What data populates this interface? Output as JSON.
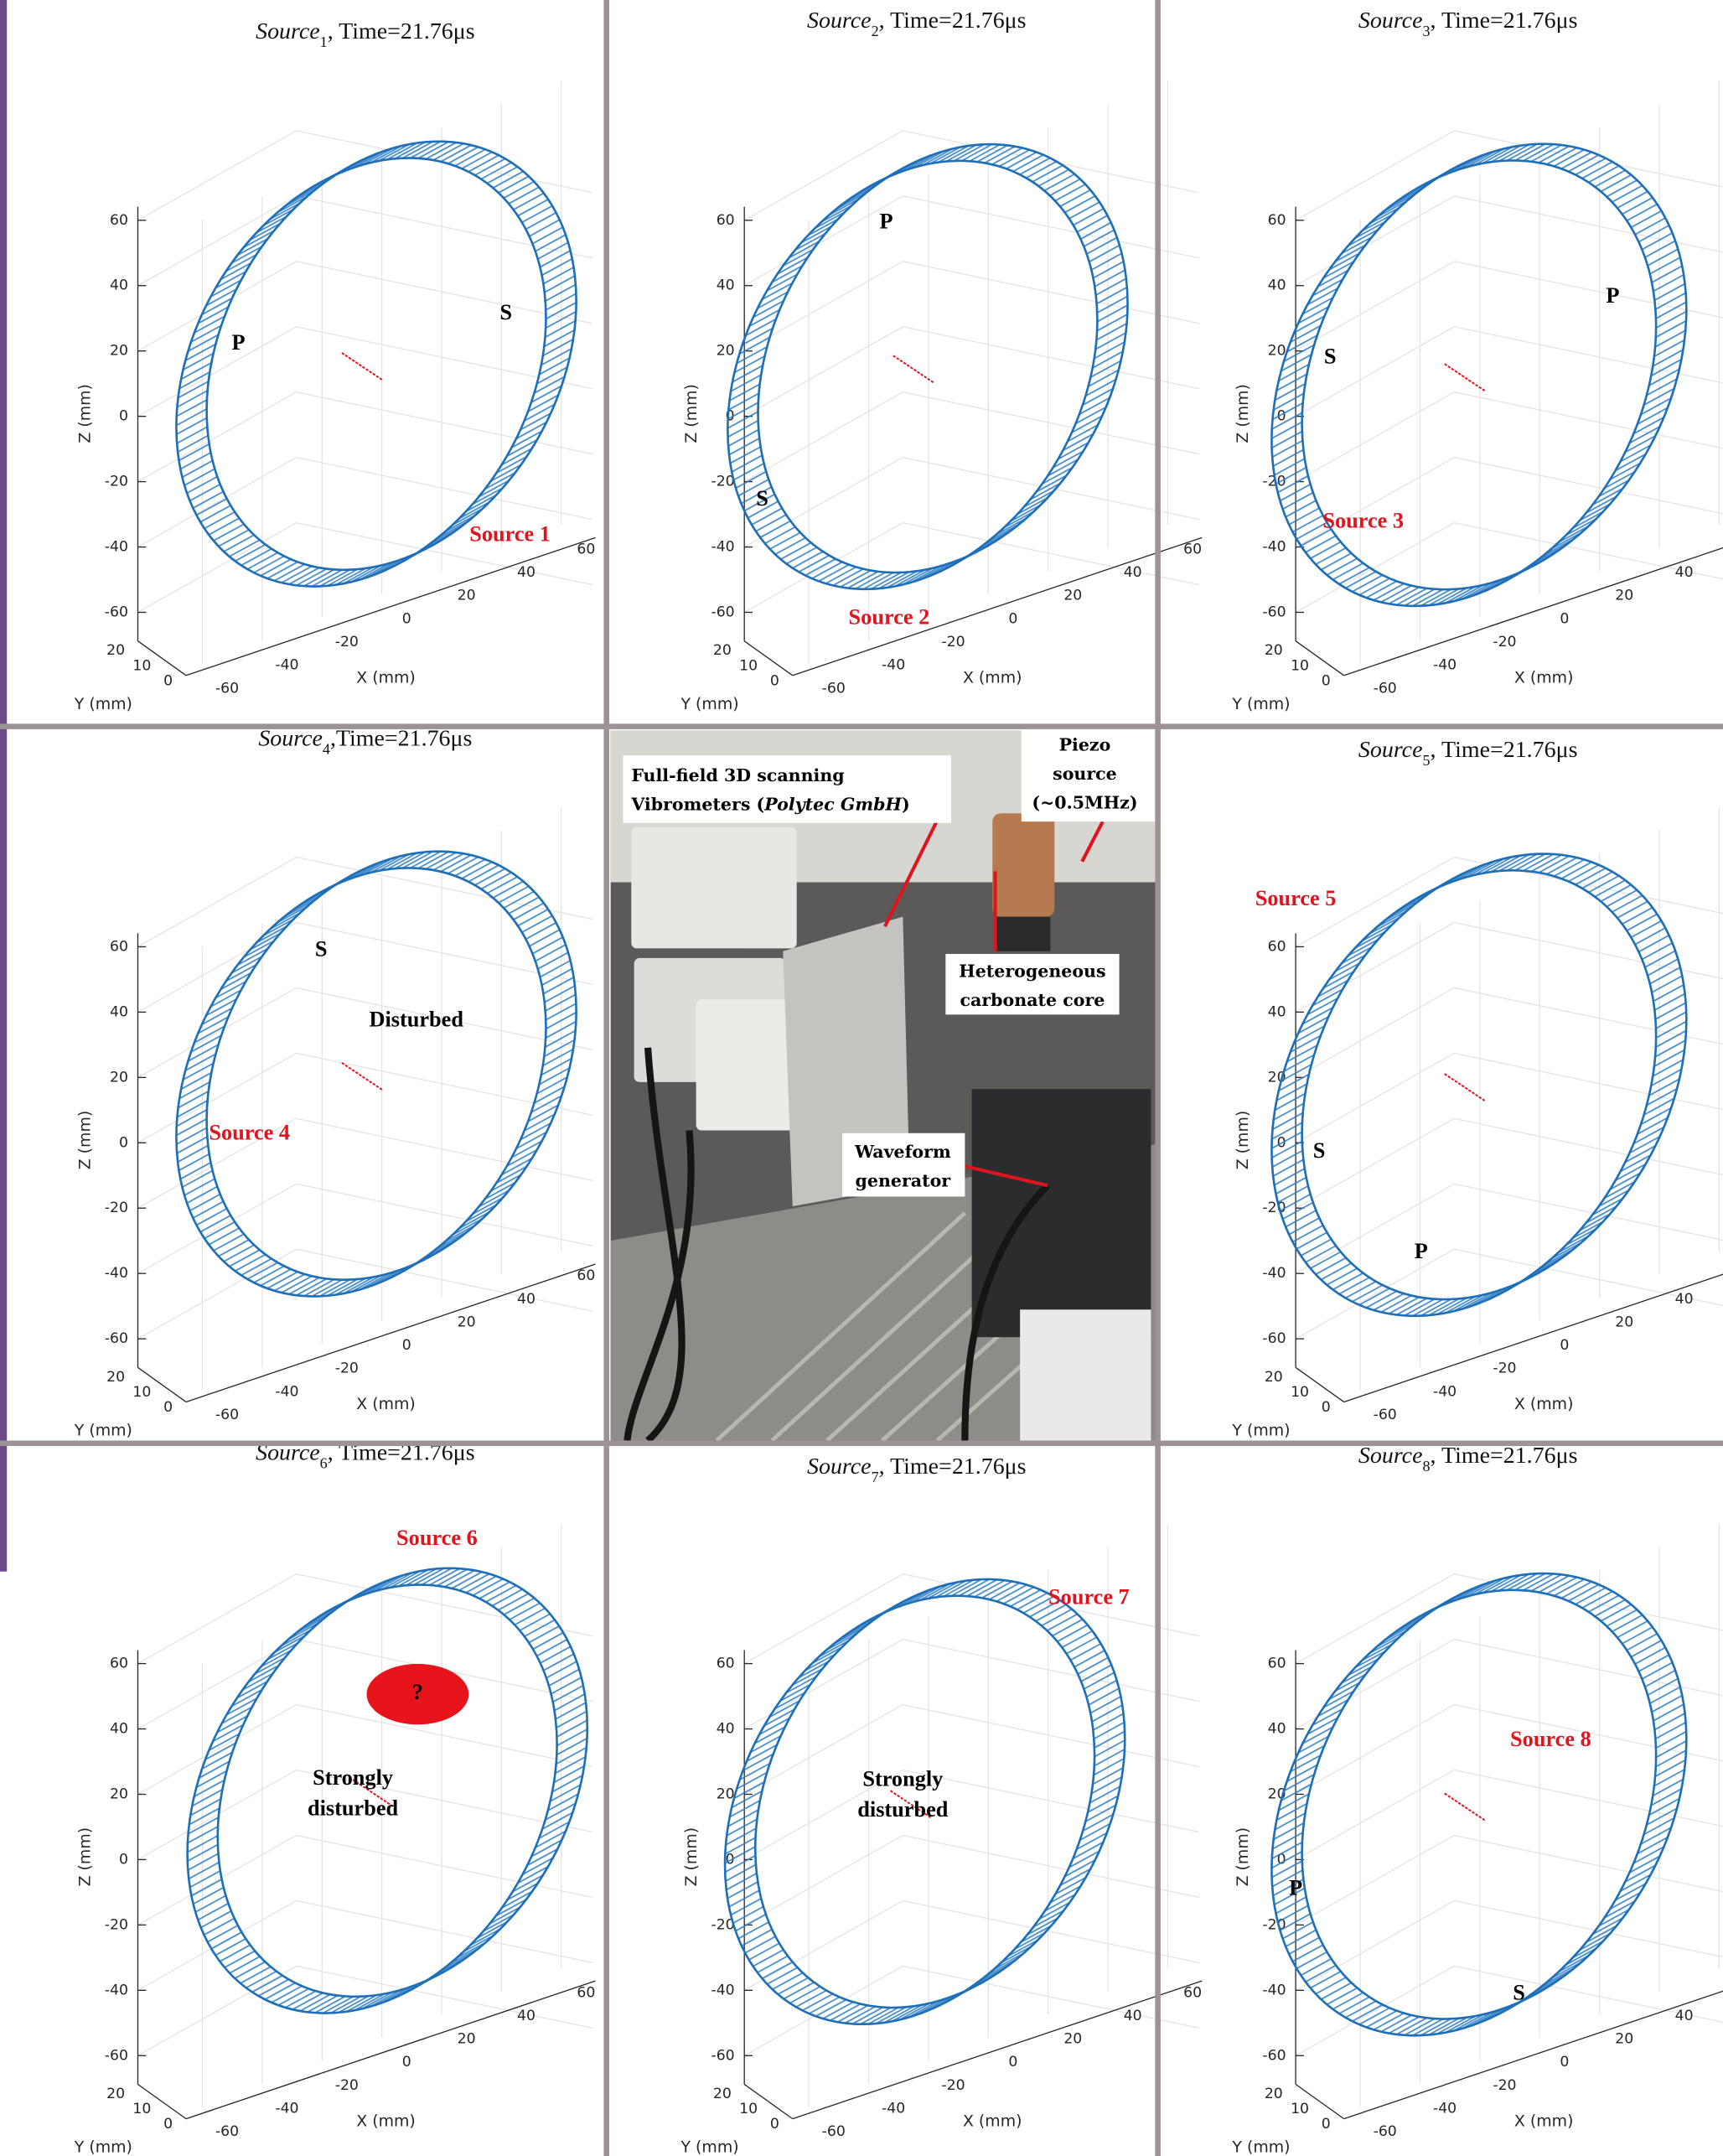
{
  "panels": [
    {
      "title": {
        "name": "Source",
        "sub": "1",
        "rest": ", Time=21.76μs"
      },
      "annotations": [
        {
          "lines": [
            "P"
          ],
          "color": "#000000"
        },
        {
          "lines": [
            "S"
          ],
          "color": "#000000"
        },
        {
          "lines": [
            "Source 1"
          ],
          "color": "#e0141e"
        }
      ]
    },
    {
      "title": {
        "name": "Source",
        "sub": "2",
        "rest": ", Time=21.76μs"
      },
      "annotations": [
        {
          "lines": [
            "P"
          ],
          "color": "#000000"
        },
        {
          "lines": [
            "S"
          ],
          "color": "#000000"
        },
        {
          "lines": [
            "Source 2"
          ],
          "color": "#e0141e"
        }
      ]
    },
    {
      "title": {
        "name": "Source",
        "sub": "3",
        "rest": ", Time=21.76μs"
      },
      "annotations": [
        {
          "lines": [
            "P"
          ],
          "color": "#000000"
        },
        {
          "lines": [
            "S"
          ],
          "color": "#000000"
        },
        {
          "lines": [
            "Source 3"
          ],
          "color": "#e0141e"
        }
      ]
    },
    {
      "title": {
        "name": "Source",
        "sub": "4",
        "rest": ",Time=21.76μs"
      },
      "annotations": [
        {
          "lines": [
            "S"
          ],
          "color": "#000000"
        },
        {
          "lines": [
            "Disturbed"
          ],
          "color": "#000000"
        },
        {
          "lines": [
            "Source 4"
          ],
          "color": "#e0141e"
        }
      ]
    },
    {
      "title": {
        "name": "Source",
        "sub": "5",
        "rest": ", Time=21.76μs"
      },
      "annotations": [
        {
          "lines": [
            "Source 5"
          ],
          "color": "#e0141e"
        },
        {
          "lines": [
            "S"
          ],
          "color": "#000000"
        },
        {
          "lines": [
            "P"
          ],
          "color": "#000000"
        }
      ]
    },
    {
      "title": {
        "name": "Source",
        "sub": "6",
        "rest": ", Time=21.76μs"
      },
      "annotations": [
        {
          "lines": [
            "Source 6"
          ],
          "color": "#e0141e"
        },
        {
          "lines": [
            "?"
          ],
          "color": "#000000"
        },
        {
          "lines": [
            "Strongly",
            "disturbed"
          ],
          "color": "#000000"
        }
      ]
    },
    {
      "title": {
        "name": "Source",
        "sub": "7",
        "rest": ", Time=21.76μs"
      },
      "annotations": [
        {
          "lines": [
            "Source 7"
          ],
          "color": "#e0141e"
        },
        {
          "lines": [
            "Strongly",
            "disturbed"
          ],
          "color": "#000000"
        }
      ]
    },
    {
      "title": {
        "name": "Source",
        "sub": "8",
        "rest": ", Time=21.76μs"
      },
      "annotations": [
        {
          "lines": [
            "Source 8"
          ],
          "color": "#e0141e"
        },
        {
          "lines": [
            "P"
          ],
          "color": "#000000"
        },
        {
          "lines": [
            "S"
          ],
          "color": "#000000"
        }
      ]
    }
  ],
  "axes": {
    "z_label": "Z (mm)",
    "x_label": "X (mm)",
    "y_label": "Y (mm)",
    "z_ticks": [
      60,
      40,
      20,
      0,
      -20,
      -40,
      -60
    ],
    "x_ticks": [
      -60,
      -40,
      -20,
      0,
      20,
      40,
      60
    ],
    "y_ticks": [
      20,
      10,
      0
    ]
  },
  "photo": {
    "labels": [
      {
        "lines": [
          [
            "Full-field 3D scanning"
          ],
          [
            "Vibrometers (",
            "Polytec GmbH",
            ")"
          ]
        ]
      },
      {
        "lines": [
          [
            "Piezo"
          ],
          [
            "source"
          ],
          [
            "(~0.5MHz)"
          ]
        ]
      },
      {
        "lines": [
          [
            "Heterogeneous"
          ],
          [
            "carbonate core"
          ]
        ]
      },
      {
        "lines": [
          [
            "Waveform"
          ],
          [
            "generator"
          ]
        ]
      }
    ]
  }
}
